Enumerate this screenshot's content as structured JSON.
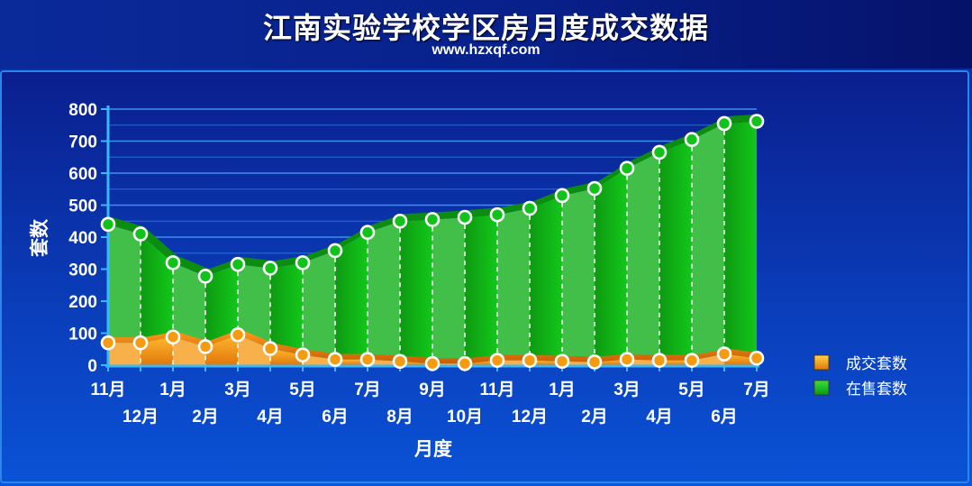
{
  "header": {
    "title": "江南实验学校学区房月度成交数据",
    "subtitle": "www.hzxqf.com"
  },
  "chart_data": {
    "type": "area",
    "title": "江南实验学校学区房月度成交数据",
    "subtitle": "www.hzxqf.com",
    "xlabel": "月度",
    "ylabel": "套数",
    "ylim": [
      0,
      800
    ],
    "yticks": [
      0,
      100,
      200,
      300,
      400,
      500,
      600,
      700,
      800
    ],
    "grid": true,
    "legend_position": "right",
    "categories": [
      "11月",
      "12月",
      "1月",
      "2月",
      "3月",
      "4月",
      "5月",
      "6月",
      "7月",
      "8月",
      "9月",
      "10月",
      "11月",
      "12月",
      "1月",
      "2月",
      "3月",
      "4月",
      "5月",
      "6月",
      "7月"
    ],
    "series": [
      {
        "name": "在售套数",
        "color": "#11c21a",
        "values": [
          440,
          410,
          320,
          278,
          315,
          303,
          320,
          358,
          415,
          450,
          455,
          462,
          470,
          490,
          530,
          552,
          615,
          665,
          705,
          755,
          762
        ]
      },
      {
        "name": "成交套数",
        "color": "#f59b10",
        "values": [
          70,
          70,
          88,
          58,
          95,
          52,
          32,
          18,
          18,
          12,
          5,
          5,
          15,
          15,
          12,
          10,
          18,
          15,
          15,
          35,
          22
        ]
      }
    ]
  }
}
